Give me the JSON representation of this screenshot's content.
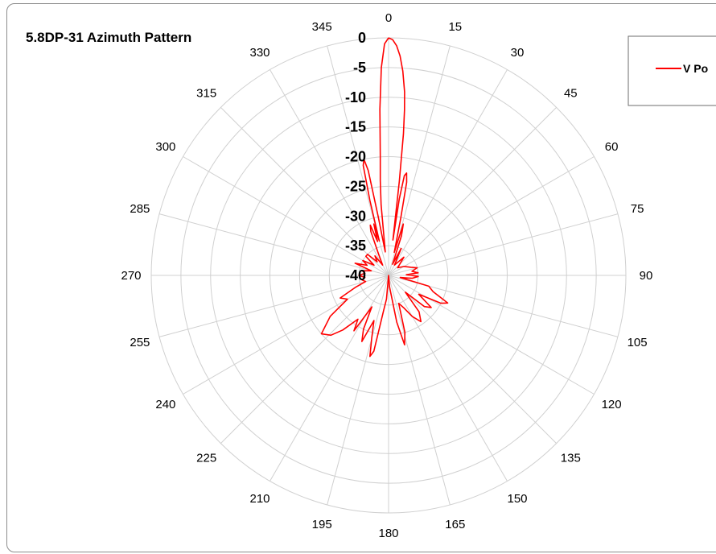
{
  "colors": {
    "series": "#ff0000",
    "grid": "#d0d0d0",
    "frame": "#8c8c8c"
  },
  "chart_data": {
    "type": "polar-line",
    "title": "5.8DP-31 Azimuth Pattern",
    "angle_unit": "degrees",
    "angle_ticks": [
      "0",
      "15",
      "30",
      "45",
      "60",
      "75",
      "90",
      "105",
      "120",
      "135",
      "150",
      "165",
      "180",
      "195",
      "210",
      "225",
      "240",
      "255",
      "270",
      "285",
      "300",
      "315",
      "330",
      "345"
    ],
    "angle_tick_values": [
      0,
      15,
      30,
      45,
      60,
      75,
      90,
      105,
      120,
      135,
      150,
      165,
      180,
      195,
      210,
      225,
      240,
      255,
      270,
      285,
      300,
      315,
      330,
      345
    ],
    "radial_ticks": [
      "0",
      "-5",
      "-10",
      "-15",
      "-20",
      "-25",
      "-30",
      "-35",
      "-40"
    ],
    "radial_tick_values": [
      0,
      -5,
      -10,
      -15,
      -20,
      -25,
      -30,
      -35,
      -40
    ],
    "rlim": [
      -40,
      0
    ],
    "grid": true,
    "legend_position": "top-right",
    "series": [
      {
        "name": "V Po",
        "color": "#ff0000",
        "points": [
          [
            0,
            0
          ],
          [
            1,
            -0.3
          ],
          [
            2,
            -1.3
          ],
          [
            3,
            -3
          ],
          [
            4,
            -5.5
          ],
          [
            5,
            -9
          ],
          [
            5.5,
            -12
          ],
          [
            6,
            -16
          ],
          [
            6.5,
            -24
          ],
          [
            7,
            -34
          ],
          [
            8,
            -27
          ],
          [
            9,
            -23
          ],
          [
            10,
            -22.5
          ],
          [
            11,
            -24
          ],
          [
            12,
            -30
          ],
          [
            14,
            -36
          ],
          [
            16,
            -31
          ],
          [
            18,
            -33
          ],
          [
            20,
            -38
          ],
          [
            25,
            -35
          ],
          [
            30,
            -38
          ],
          [
            40,
            -36
          ],
          [
            50,
            -38
          ],
          [
            60,
            -37
          ],
          [
            70,
            -36
          ],
          [
            75,
            -35
          ],
          [
            80,
            -36
          ],
          [
            85,
            -35
          ],
          [
            88,
            -37
          ],
          [
            92,
            -35
          ],
          [
            97,
            -36
          ],
          [
            100,
            -38
          ],
          [
            105,
            -33
          ],
          [
            110,
            -32
          ],
          [
            115,
            -29
          ],
          [
            118,
            -30
          ],
          [
            122,
            -34
          ],
          [
            127,
            -31
          ],
          [
            131,
            -32
          ],
          [
            135,
            -36
          ],
          [
            140,
            -32
          ],
          [
            145,
            -30.5
          ],
          [
            150,
            -32
          ],
          [
            155,
            -34
          ],
          [
            160,
            -35
          ],
          [
            164,
            -30
          ],
          [
            167,
            -28
          ],
          [
            170,
            -32
          ],
          [
            175,
            -38
          ],
          [
            180,
            -40
          ],
          [
            185,
            -36
          ],
          [
            188,
            -34
          ],
          [
            191,
            -27
          ],
          [
            193,
            -26
          ],
          [
            195,
            -29
          ],
          [
            198,
            -32
          ],
          [
            202,
            -28
          ],
          [
            205,
            -30
          ],
          [
            208,
            -34
          ],
          [
            212,
            -29
          ],
          [
            215,
            -31
          ],
          [
            220,
            -28
          ],
          [
            224,
            -26
          ],
          [
            229,
            -25
          ],
          [
            235,
            -28
          ],
          [
            240,
            -32
          ],
          [
            245,
            -31
          ],
          [
            250,
            -34
          ],
          [
            255,
            -36
          ],
          [
            260,
            -35.5
          ],
          [
            265,
            -36
          ],
          [
            270,
            -35
          ],
          [
            275,
            -36
          ],
          [
            280,
            -35.5
          ],
          [
            285,
            -37
          ],
          [
            290,
            -34
          ],
          [
            295,
            -36
          ],
          [
            300,
            -35
          ],
          [
            305,
            -37
          ],
          [
            310,
            -35
          ],
          [
            315,
            -35
          ],
          [
            320,
            -37
          ],
          [
            325,
            -36
          ],
          [
            330,
            -38
          ],
          [
            335,
            -36
          ],
          [
            338,
            -32
          ],
          [
            340,
            -31
          ],
          [
            342,
            -34
          ],
          [
            344,
            -31
          ],
          [
            345,
            -34
          ],
          [
            346,
            -27
          ],
          [
            347,
            -21
          ],
          [
            348,
            -20
          ],
          [
            349,
            -22
          ],
          [
            350,
            -30
          ],
          [
            352,
            -36
          ],
          [
            353,
            -34
          ],
          [
            354,
            -28
          ],
          [
            355,
            -24
          ],
          [
            356,
            -20
          ],
          [
            357,
            -12
          ],
          [
            358,
            -5
          ],
          [
            359,
            -1
          ],
          [
            360,
            0
          ]
        ]
      }
    ]
  }
}
